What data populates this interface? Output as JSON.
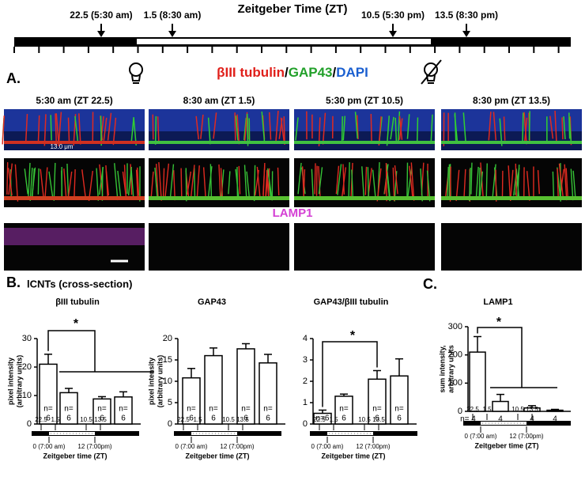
{
  "header": {
    "title": "Zeitgeber Time (ZT)",
    "marks": [
      "22.5 (5:30 am)",
      "1.5 (8:30 am)",
      "10.5 (5:30 pm)",
      "13.5 (8:30 pm)"
    ]
  },
  "panel_a": {
    "label": "A.",
    "stain": [
      "βIII tubulin",
      "/",
      "GAP43",
      "/",
      "DAPI"
    ],
    "columns": [
      "5:30 am (ZT 22.5)",
      "8:30 am (ZT 1.5)",
      "5:30 pm (ZT 10.5)",
      "8:30 pm (ZT 13.5)"
    ],
    "scale": "13.0 μm",
    "lamp": "LAMP1"
  },
  "panel_b": {
    "label": "B.",
    "subtitle": "lCNTs (cross-section)"
  },
  "panel_c": {
    "label": "C."
  },
  "mini_timeline": {
    "start": "0 (7:00 am)",
    "mid": "12 (7:00pm)",
    "label": "Zeitgeber time (ZT)"
  },
  "chart_data": [
    {
      "type": "bar",
      "title": "βIII tubulin",
      "ylabel": [
        "pixel intensity",
        "(arbitrary units)"
      ],
      "categories": [
        "22.5",
        "1.5",
        "10.5",
        "13.5"
      ],
      "values": [
        21,
        11,
        8.8,
        9.5
      ],
      "errors": [
        3.5,
        1.5,
        0.8,
        1.8
      ],
      "n_labels": [
        [
          "n=",
          "6"
        ],
        [
          "n=",
          "6"
        ],
        [
          "n=",
          "6"
        ],
        [
          "n=",
          "6"
        ]
      ],
      "ylim": [
        0,
        30
      ],
      "yticks": [
        0,
        10,
        20,
        30
      ],
      "annotation": "*"
    },
    {
      "type": "bar",
      "title": "GAP43",
      "ylabel": [
        "pixel intensity",
        "(arbitrary units)"
      ],
      "categories": [
        "22.5",
        "1.5",
        "10.5",
        "13.5"
      ],
      "values": [
        10.8,
        16,
        17.6,
        14.3
      ],
      "errors": [
        2.2,
        1.8,
        1.2,
        2
      ],
      "n_labels": [
        [
          "n=",
          "6"
        ],
        [
          "n=",
          "6"
        ],
        [
          "n=",
          "6"
        ],
        [
          "n=",
          "6"
        ]
      ],
      "ylim": [
        0,
        20
      ],
      "yticks": [
        0,
        5,
        10,
        15,
        20
      ]
    },
    {
      "type": "bar",
      "title": "GAP43/βIII tubulin",
      "categories": [
        "22.5",
        "1.5",
        "10.5",
        "13.5"
      ],
      "values": [
        0.5,
        1.3,
        2.1,
        2.25
      ],
      "errors": [
        0.15,
        0.1,
        0.4,
        0.8
      ],
      "n_labels": [
        [
          "n=6"
        ],
        [
          "n=",
          "6"
        ],
        [
          "n=",
          "6"
        ],
        [
          "n=",
          "6"
        ]
      ],
      "ylim": [
        0,
        4
      ],
      "yticks": [
        0,
        1,
        2,
        3,
        4
      ],
      "annotation": "*"
    },
    {
      "type": "bar",
      "title": "LAMP1",
      "ylabel": [
        "sum intensity,",
        "arbitrary units"
      ],
      "categories": [
        "22.5",
        "1.5",
        "10.5",
        "13.5"
      ],
      "values": [
        210,
        35,
        12,
        4
      ],
      "errors": [
        55,
        25,
        8,
        3
      ],
      "n_labels": [
        [
          "n= 4"
        ],
        [
          "4"
        ],
        [
          "4"
        ],
        [
          "4"
        ]
      ],
      "ylim": [
        0,
        300
      ],
      "yticks": [
        0,
        100,
        200,
        300
      ],
      "annotation": "*"
    }
  ]
}
